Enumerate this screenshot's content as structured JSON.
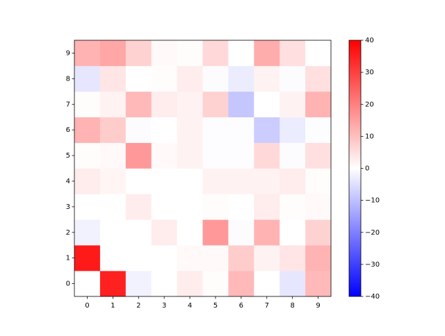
{
  "chart_data": {
    "type": "heatmap",
    "x": [
      0,
      1,
      2,
      3,
      4,
      5,
      6,
      7,
      8,
      9
    ],
    "y": [
      0,
      1,
      2,
      3,
      4,
      5,
      6,
      7,
      8,
      9
    ],
    "z": [
      [
        0,
        35,
        -2,
        0,
        3,
        0.5,
        11,
        0,
        -4,
        11
      ],
      [
        36,
        0,
        0,
        0,
        1,
        1,
        8,
        2,
        4,
        12
      ],
      [
        -2,
        0,
        0,
        3,
        0,
        16,
        -0.5,
        12,
        0,
        7
      ],
      [
        0,
        0,
        3,
        0,
        0,
        0.5,
        0,
        3,
        0.5,
        1
      ],
      [
        3,
        1.5,
        0,
        0,
        0,
        2,
        2,
        2,
        3,
        0.5
      ],
      [
        0.5,
        1,
        16,
        1,
        2,
        -0.3,
        -0.3,
        6,
        -0.5,
        5
      ],
      [
        12,
        8,
        -0.5,
        0,
        2,
        -0.3,
        -0.3,
        -8,
        -3,
        -0.3
      ],
      [
        0.5,
        2,
        11,
        3,
        2,
        7,
        -9,
        0,
        2,
        12
      ],
      [
        -4,
        4,
        0,
        0.5,
        3,
        -0.5,
        -3,
        2,
        -0.5,
        5
      ],
      [
        12,
        14,
        7,
        1,
        0.5,
        6,
        0,
        13,
        5,
        0
      ]
    ],
    "colormap": "bwr",
    "xlim": [
      -0.5,
      9.5
    ],
    "ylim": [
      -0.5,
      9.5
    ],
    "xticks": [
      0,
      1,
      2,
      3,
      4,
      5,
      6,
      7,
      8,
      9
    ],
    "yticks": [
      0,
      1,
      2,
      3,
      4,
      5,
      6,
      7,
      8,
      9
    ],
    "clim": [
      -40,
      40
    ],
    "cticks": [
      {
        "value": -40,
        "label": "−40"
      },
      {
        "value": -30,
        "label": "−30"
      },
      {
        "value": -20,
        "label": "−20"
      },
      {
        "value": -10,
        "label": "−10"
      },
      0,
      10,
      20,
      30,
      40
    ]
  }
}
